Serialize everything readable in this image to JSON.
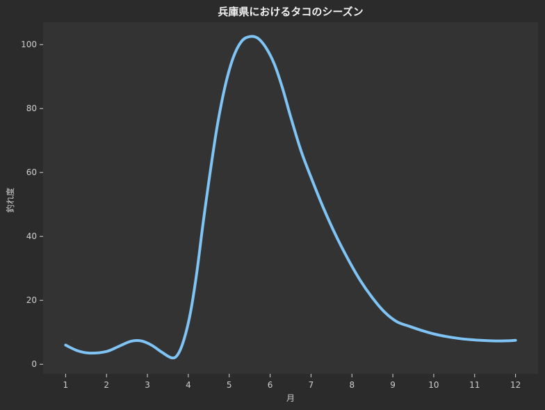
{
  "chart_data": {
    "type": "line",
    "title": "兵庫県におけるタコのシーズン",
    "xlabel": "月",
    "ylabel": "釣れ度",
    "xlim": [
      0.45,
      12.55
    ],
    "ylim": [
      -3,
      107
    ],
    "xticks": [
      1,
      2,
      3,
      4,
      5,
      6,
      7,
      8,
      9,
      10,
      11,
      12
    ],
    "yticks": [
      0,
      20,
      40,
      60,
      80,
      100
    ],
    "grid": false,
    "legend": "none",
    "series": [
      {
        "color": "#7fc4f4",
        "x": [
          1,
          1.3,
          1.6,
          2.0,
          2.3,
          2.6,
          2.85,
          3.1,
          3.35,
          3.6,
          3.75,
          3.9,
          4.05,
          4.2,
          4.35,
          4.5,
          4.7,
          4.9,
          5.1,
          5.3,
          5.5,
          5.7,
          5.9,
          6.1,
          6.3,
          6.5,
          6.75,
          7.0,
          7.3,
          7.6,
          7.9,
          8.2,
          8.5,
          8.8,
          9.1,
          9.4,
          9.7,
          10.0,
          10.3,
          10.6,
          10.9,
          11.2,
          11.5,
          11.8,
          12.0
        ],
        "y": [
          6,
          4.2,
          3.5,
          4.0,
          5.6,
          7.2,
          7.3,
          6.0,
          3.8,
          2.0,
          3.2,
          8.0,
          16,
          28,
          43,
          57,
          74,
          87,
          96,
          101,
          102.5,
          102,
          99,
          94,
          86.5,
          77.5,
          67,
          58.5,
          49,
          40.5,
          33,
          26.3,
          20.8,
          16.3,
          13.3,
          11.9,
          10.6,
          9.5,
          8.7,
          8.1,
          7.7,
          7.45,
          7.3,
          7.35,
          7.5
        ]
      }
    ],
    "colors": {
      "figure_background": "#2b2b2b",
      "plot_background": "#333333",
      "line": "#7fc4f4",
      "text": "#d8d8d8"
    }
  }
}
